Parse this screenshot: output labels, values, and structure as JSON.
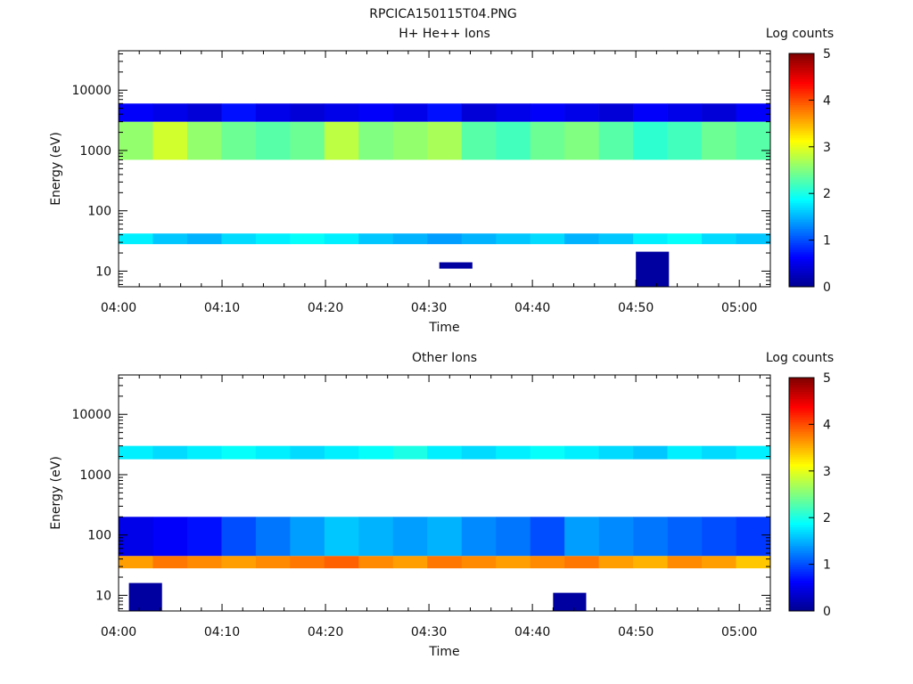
{
  "figure_title": "RPCICA150115T04.PNG",
  "colorbar": {
    "label": "Log counts",
    "ticks": [
      "0",
      "1",
      "2",
      "3",
      "4",
      "5"
    ],
    "colormap": [
      "#00008f",
      "#0000ff",
      "#0080ff",
      "#00ffff",
      "#80ff80",
      "#ffff00",
      "#ff8000",
      "#ff0000",
      "#800000"
    ]
  },
  "chart_data": [
    {
      "type": "heatmap",
      "title": "H+ He++ Ions",
      "xlabel": "Time",
      "ylabel": "Energy (eV)",
      "x_ticks": [
        "04:00",
        "04:10",
        "04:20",
        "04:30",
        "04:40",
        "04:50",
        "05:00"
      ],
      "y_ticks": [
        "10",
        "100",
        "1000",
        "10000"
      ],
      "y_scale": "log",
      "ylim": [
        5.5,
        45000
      ],
      "xlim": [
        "04:00",
        "05:03"
      ],
      "z_range": [
        0,
        5
      ],
      "z_label": "Log counts",
      "bands": [
        {
          "e_lo": 700,
          "e_hi": 3000,
          "values": [
            2.6,
            2.9,
            2.6,
            2.4,
            2.3,
            2.4,
            2.8,
            2.5,
            2.6,
            2.7,
            2.3,
            2.2,
            2.4,
            2.5,
            2.3,
            2.1,
            2.2,
            2.4,
            2.3
          ]
        },
        {
          "e_lo": 28,
          "e_hi": 42,
          "values": [
            1.8,
            1.6,
            1.5,
            1.7,
            1.8,
            1.9,
            1.8,
            1.6,
            1.5,
            1.4,
            1.5,
            1.6,
            1.7,
            1.5,
            1.6,
            1.8,
            1.9,
            1.7,
            1.6
          ]
        },
        {
          "e_lo": 3000,
          "e_hi": 6000,
          "values": [
            0.6,
            0.5,
            0.4,
            0.7,
            0.5,
            0.4,
            0.5,
            0.6,
            0.5,
            0.7,
            0.4,
            0.5,
            0.6,
            0.5,
            0.4,
            0.6,
            0.5,
            0.4,
            0.6
          ]
        }
      ],
      "isolated_low_energy_hits": [
        {
          "time": "04:31",
          "e_lo": 11,
          "e_hi": 14,
          "value": 0.1
        },
        {
          "time": "04:50",
          "e_lo": 5.5,
          "e_hi": 21,
          "value": 0.1
        }
      ]
    },
    {
      "type": "heatmap",
      "title": "Other Ions",
      "xlabel": "Time",
      "ylabel": "Energy (eV)",
      "x_ticks": [
        "04:00",
        "04:10",
        "04:20",
        "04:30",
        "04:40",
        "04:50",
        "05:00"
      ],
      "y_ticks": [
        "10",
        "100",
        "1000",
        "10000"
      ],
      "y_scale": "log",
      "ylim": [
        5.5,
        45000
      ],
      "xlim": [
        "04:00",
        "05:03"
      ],
      "z_range": [
        0,
        5
      ],
      "z_label": "Log counts",
      "bands": [
        {
          "e_lo": 28,
          "e_hi": 45,
          "values": [
            3.6,
            3.8,
            3.7,
            3.6,
            3.7,
            3.8,
            3.9,
            3.7,
            3.6,
            3.8,
            3.7,
            3.6,
            3.7,
            3.8,
            3.6,
            3.5,
            3.7,
            3.6,
            3.4
          ]
        },
        {
          "e_lo": 1800,
          "e_hi": 3000,
          "values": [
            1.8,
            1.7,
            1.8,
            1.9,
            1.8,
            1.7,
            1.8,
            1.9,
            2.0,
            1.8,
            1.7,
            1.8,
            1.9,
            1.8,
            1.7,
            1.6,
            1.8,
            1.7,
            1.8
          ]
        },
        {
          "e_lo": 45,
          "e_hi": 200,
          "values": [
            0.5,
            0.6,
            0.7,
            1.0,
            1.2,
            1.4,
            1.6,
            1.5,
            1.4,
            1.5,
            1.3,
            1.2,
            1.0,
            1.4,
            1.3,
            1.2,
            1.1,
            1.0,
            0.9
          ]
        }
      ],
      "isolated_low_energy_hits": [
        {
          "time": "04:01",
          "e_lo": 5.5,
          "e_hi": 16,
          "value": 0.1
        },
        {
          "time": "04:42",
          "e_lo": 5.5,
          "e_hi": 11,
          "value": 0.1
        }
      ]
    }
  ]
}
